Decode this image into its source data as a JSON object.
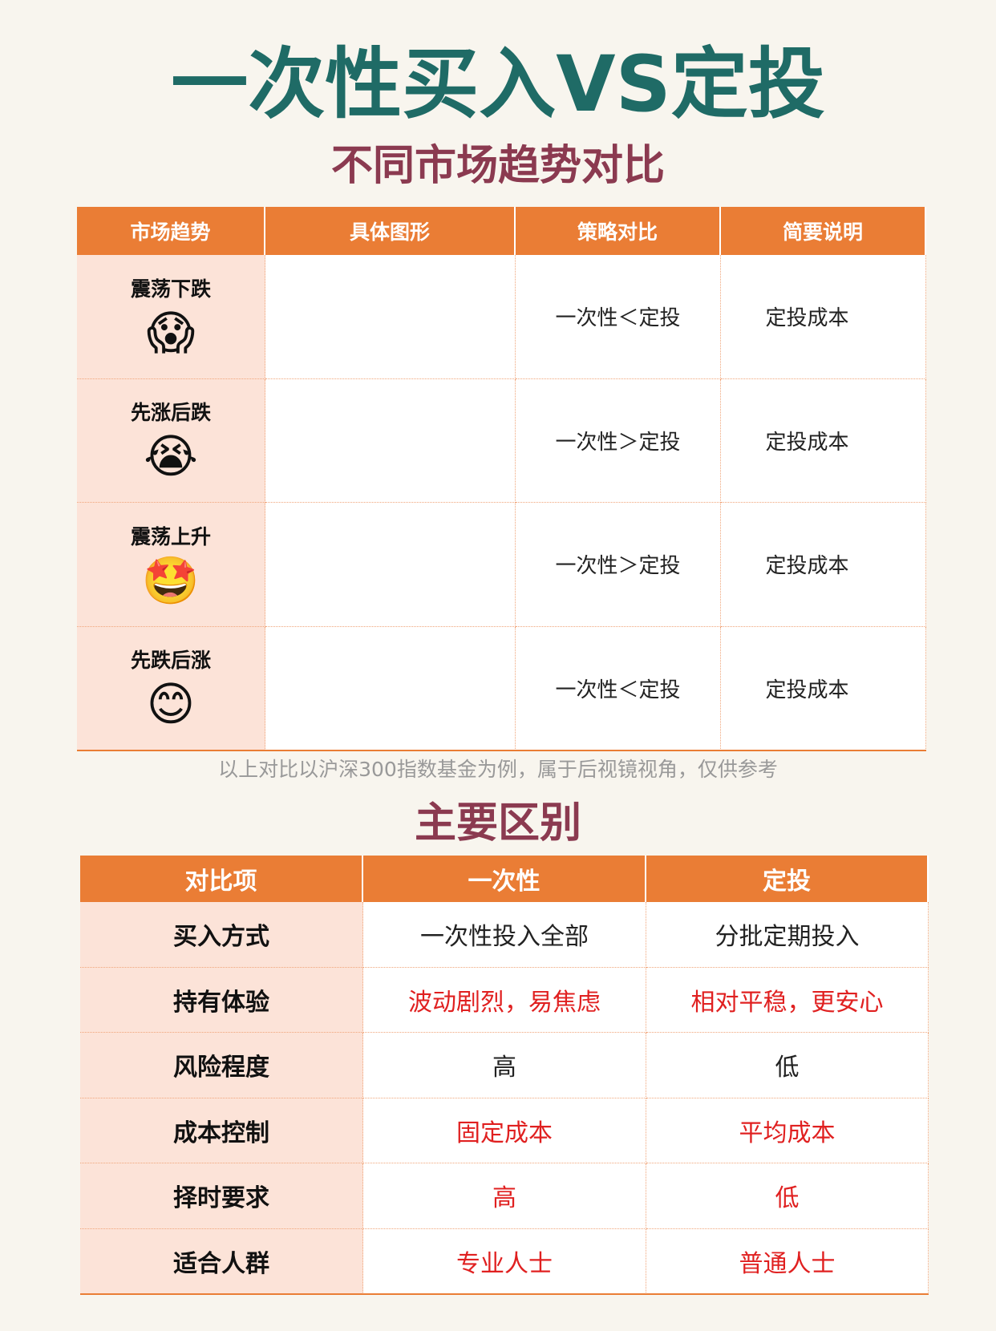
{
  "header": {
    "title": "一次性买入VS定投",
    "subtitle": "不同市场趋势对比"
  },
  "trend_table": {
    "columns": [
      "市场趋势",
      "具体图形",
      "策略对比",
      "简要说明"
    ],
    "rows": [
      {
        "trend": "震荡下跌",
        "emoji": "😱",
        "compare": "一次性＜定投",
        "summary": "定投成本"
      },
      {
        "trend": "先涨后跌",
        "emoji": "😭",
        "compare": "一次性＞定投",
        "summary": "定投成本"
      },
      {
        "trend": "震荡上升",
        "emoji": "🤩",
        "compare": "一次性＞定投",
        "summary": "定投成本"
      },
      {
        "trend": "先跌后涨",
        "emoji": "😊",
        "compare": "一次性＜定投",
        "summary": "定投成本"
      }
    ]
  },
  "note": "以上对比以沪深300指数基金为例，属于后视镜视角，仅供参考",
  "section_title": "主要区别",
  "diff_table": {
    "columns": [
      "对比项",
      "一次性",
      "定投"
    ],
    "rows": [
      {
        "cells": [
          "买入方式",
          "一次性投入全部",
          "分批定期投入"
        ],
        "color": "#222222"
      },
      {
        "cells": [
          "持有体验",
          "波动剧烈，易焦虑",
          "相对平稳，更安心"
        ],
        "color": "#e02020"
      },
      {
        "cells": [
          "风险程度",
          "高",
          "低"
        ],
        "color": "#222222"
      },
      {
        "cells": [
          "成本控制",
          "固定成本",
          "平均成本"
        ],
        "color": "#e02020"
      },
      {
        "cells": [
          "择时要求",
          "高",
          "低"
        ],
        "color": "#e02020"
      },
      {
        "cells": [
          "适合人群",
          "专业人士",
          "普通人士"
        ],
        "color": "#e02020"
      }
    ]
  }
}
